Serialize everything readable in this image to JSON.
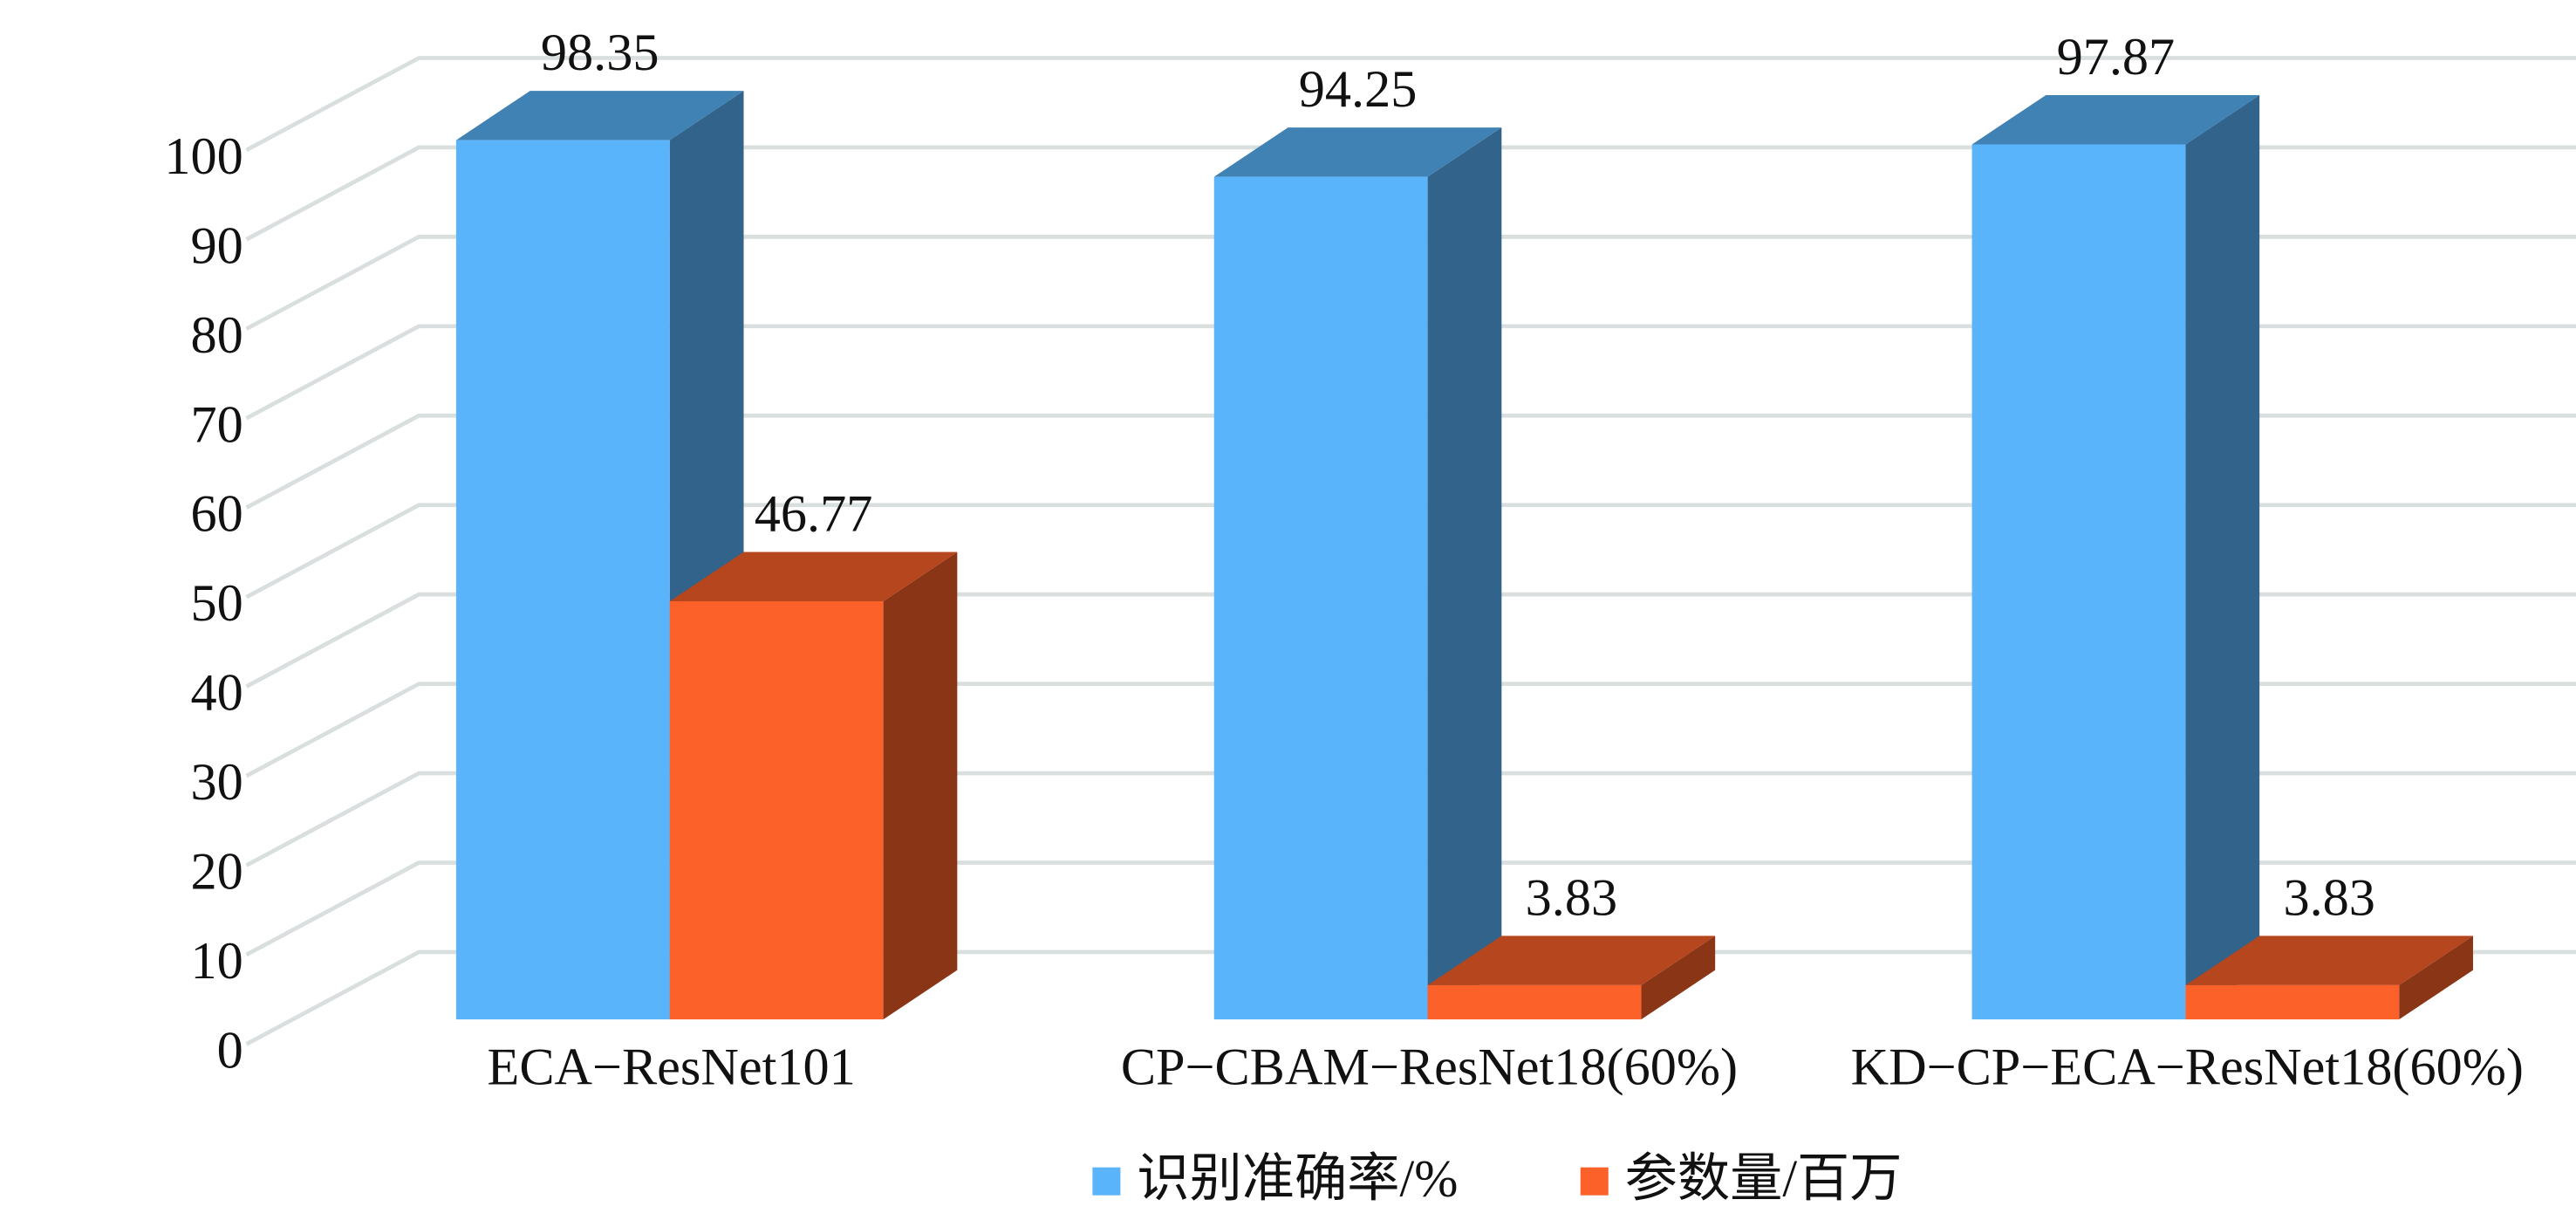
{
  "chart_data": {
    "type": "bar3d",
    "categories": [
      "ECA−ResNet101",
      "CP−CBAM−ResNet18(60%)",
      "KD−CP−ECA−ResNet18(60%)"
    ],
    "series": [
      {
        "name": "识别准确率/%",
        "color": "#5ab4fb",
        "values": [
          98.35,
          94.25,
          97.87
        ]
      },
      {
        "name": "参数量/百万",
        "color": "#fb6128",
        "values": [
          46.77,
          3.83,
          3.83
        ]
      }
    ],
    "ylim": [
      0,
      100
    ],
    "yticks": [
      0,
      10,
      20,
      30,
      40,
      50,
      60,
      70,
      80,
      90,
      100
    ],
    "grid": true,
    "legend": "bottom"
  }
}
